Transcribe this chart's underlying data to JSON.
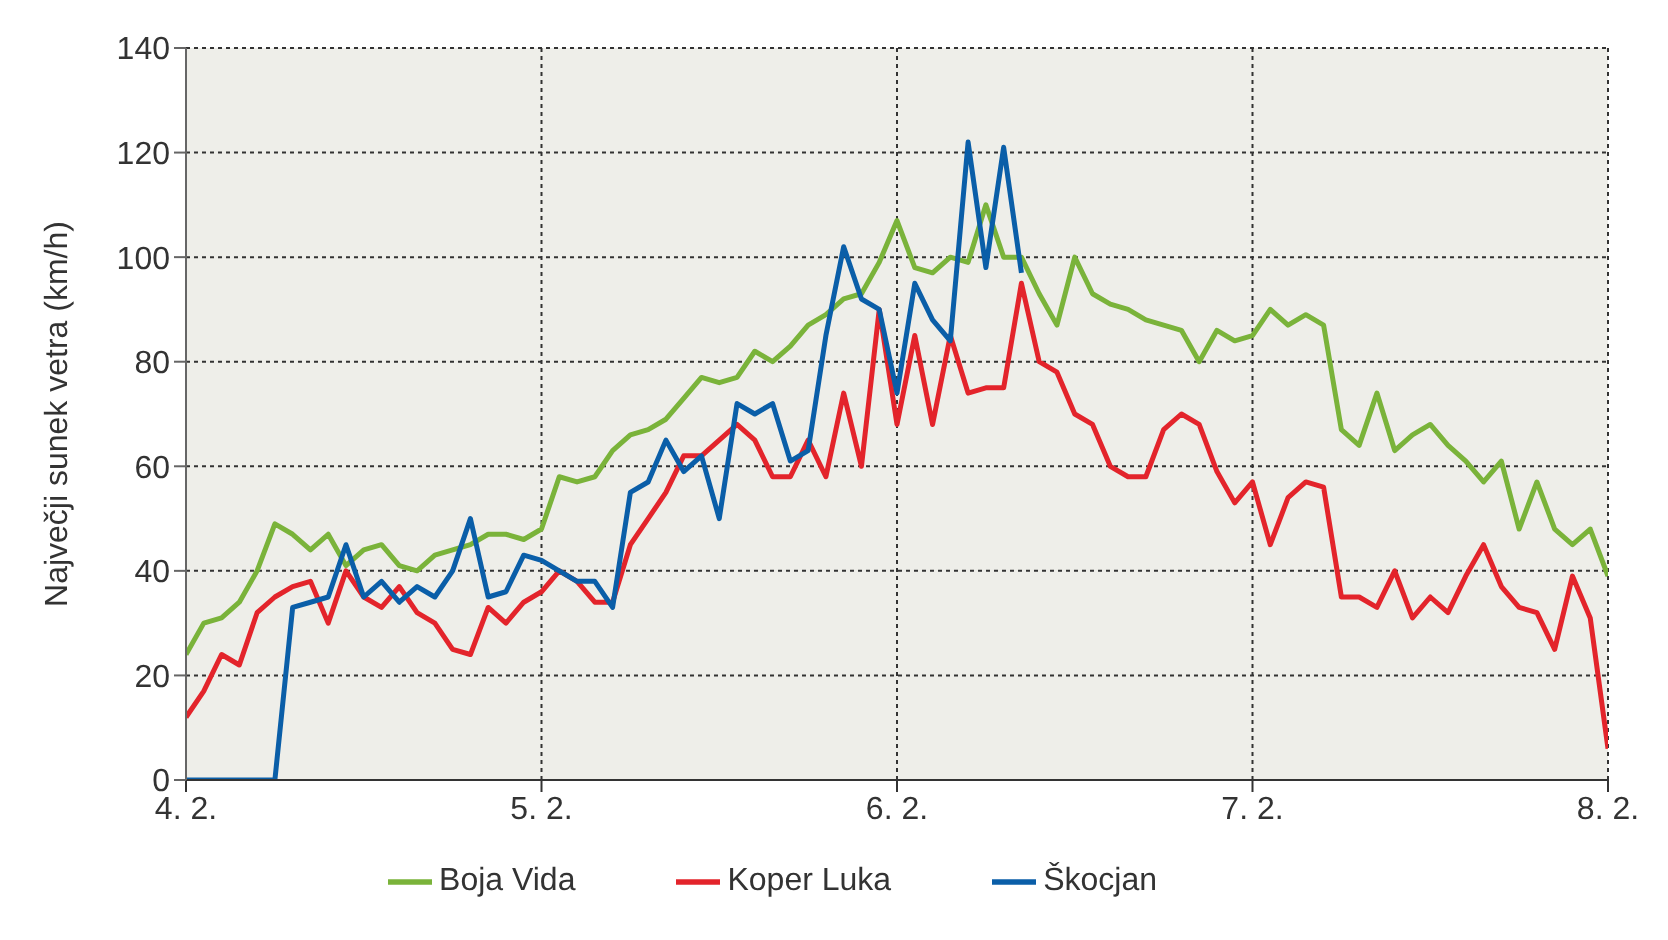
{
  "chart_data": {
    "type": "line",
    "ylabel": "Največji sunek vetra (km/h)",
    "legend": "bottom",
    "grid": true,
    "x": [
      "--02-04T00:00",
      "--02-04T01:12",
      "--02-04T02:24",
      "--02-04T03:36",
      "--02-04T04:48",
      "--02-04T06:00",
      "--02-04T07:12",
      "--02-04T08:24",
      "--02-04T09:36",
      "--02-04T10:48",
      "--02-04T12:00",
      "--02-04T13:12",
      "--02-04T14:24",
      "--02-04T15:36",
      "--02-04T16:48",
      "--02-04T18:00",
      "--02-04T19:12",
      "--02-04T20:24",
      "--02-04T21:36",
      "--02-04T22:48",
      "--02-05T00:00",
      "--02-05T01:12",
      "--02-05T02:24",
      "--02-05T03:36",
      "--02-05T04:48",
      "--02-05T06:00",
      "--02-05T07:12",
      "--02-05T08:24",
      "--02-05T09:36",
      "--02-05T10:48",
      "--02-05T12:00",
      "--02-05T13:12",
      "--02-05T14:24",
      "--02-05T15:36",
      "--02-05T16:48",
      "--02-05T18:00",
      "--02-05T19:12",
      "--02-05T20:24",
      "--02-05T21:36",
      "--02-05T22:48",
      "--02-06T00:00",
      "--02-06T01:12",
      "--02-06T02:24",
      "--02-06T03:36",
      "--02-06T04:48",
      "--02-06T06:00",
      "--02-06T07:12",
      "--02-06T08:24",
      "--02-06T09:36",
      "--02-06T10:48",
      "--02-06T12:00",
      "--02-06T13:12",
      "--02-06T14:24",
      "--02-06T15:36",
      "--02-06T16:48",
      "--02-06T18:00",
      "--02-06T19:12",
      "--02-06T20:24",
      "--02-06T21:36",
      "--02-06T22:48",
      "--02-07T00:00",
      "--02-07T01:12",
      "--02-07T02:24",
      "--02-07T03:36",
      "--02-07T04:48",
      "--02-07T06:00",
      "--02-07T07:12",
      "--02-07T08:24",
      "--02-07T09:36",
      "--02-07T10:48",
      "--02-07T12:00",
      "--02-07T13:12",
      "--02-07T14:24",
      "--02-07T15:36",
      "--02-07T16:48",
      "--02-07T18:00",
      "--02-07T19:12",
      "--02-07T20:24",
      "--02-07T21:36",
      "--02-07T22:48",
      "--02-08T00:00"
    ],
    "xlim": [
      "--02-04",
      "--02-08"
    ],
    "xticks": [
      {
        "value": "--02-04",
        "label": "4. 2."
      },
      {
        "value": "--02-05",
        "label": "5. 2."
      },
      {
        "value": "--02-06",
        "label": "6. 2."
      },
      {
        "value": "--02-07",
        "label": "7. 2."
      },
      {
        "value": "--02-08",
        "label": "8. 2."
      }
    ],
    "ylim": [
      0,
      140
    ],
    "yticks": [
      0,
      20,
      40,
      60,
      80,
      100,
      120,
      140
    ],
    "series": [
      {
        "name": "Boja Vida",
        "color": "#7ab33a",
        "values": [
          24,
          30,
          31,
          34,
          40,
          49,
          47,
          44,
          47,
          41,
          44,
          45,
          41,
          40,
          43,
          44,
          45,
          47,
          47,
          46,
          48,
          58,
          57,
          58,
          63,
          66,
          67,
          69,
          73,
          77,
          76,
          77,
          82,
          80,
          83,
          87,
          89,
          92,
          93,
          99,
          107,
          98,
          97,
          100,
          99,
          110,
          100,
          100,
          93,
          87,
          100,
          93,
          91,
          90,
          88,
          87,
          86,
          80,
          86,
          84,
          85,
          90,
          87,
          89,
          87,
          67,
          64,
          74,
          63,
          66,
          68,
          64,
          61,
          57,
          61,
          48,
          57,
          48,
          45,
          48,
          39
        ]
      },
      {
        "name": "Koper Luka",
        "color": "#e3242b",
        "values": [
          12,
          17,
          24,
          22,
          32,
          35,
          37,
          38,
          30,
          40,
          35,
          33,
          37,
          32,
          30,
          25,
          24,
          33,
          30,
          34,
          36,
          40,
          38,
          34,
          34,
          45,
          50,
          55,
          62,
          62,
          65,
          68,
          65,
          58,
          58,
          65,
          58,
          74,
          60,
          90,
          68,
          85,
          68,
          85,
          74,
          75,
          75,
          95,
          80,
          78,
          70,
          68,
          60,
          58,
          58,
          67,
          70,
          68,
          59,
          53,
          57,
          45,
          54,
          57,
          56,
          35,
          35,
          33,
          40,
          31,
          35,
          32,
          39,
          45,
          37,
          33,
          32,
          25,
          39,
          31,
          6
        ]
      },
      {
        "name": "Škocjan",
        "color": "#0a5ea8",
        "values": [
          0,
          0,
          0,
          0,
          0,
          0,
          33,
          34,
          35,
          45,
          35,
          38,
          34,
          37,
          35,
          40,
          50,
          35,
          36,
          43,
          42,
          40,
          38,
          38,
          33,
          55,
          57,
          65,
          59,
          62,
          50,
          72,
          70,
          72,
          61,
          63,
          85,
          102,
          92,
          90,
          74,
          95,
          88,
          84,
          122,
          98,
          121,
          97,
          null,
          null,
          null,
          null,
          null,
          null,
          null,
          null,
          null,
          null,
          null,
          null,
          null,
          null,
          null,
          null,
          null,
          null,
          null,
          null,
          null,
          null,
          null,
          null,
          null,
          null,
          null,
          null,
          null,
          null,
          null,
          null,
          null
        ]
      }
    ]
  }
}
